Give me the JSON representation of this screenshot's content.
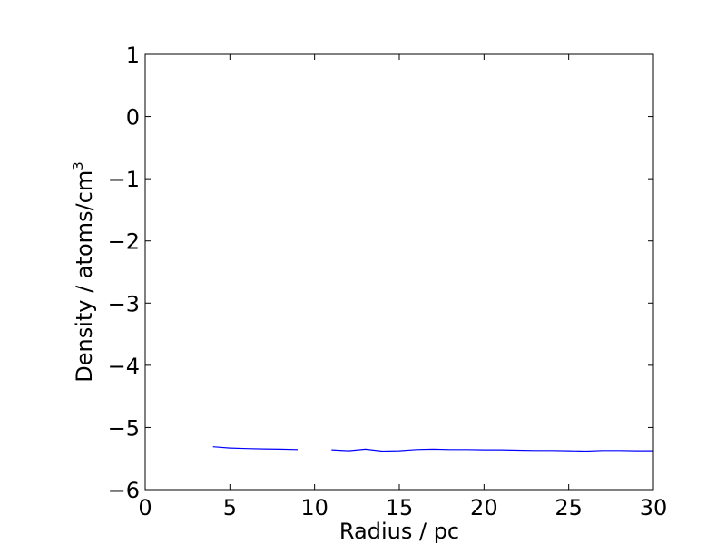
{
  "chart_data": {
    "type": "line",
    "title": "",
    "xlabel": "Radius / pc",
    "ylabel": "Density / atoms/cm",
    "ylabel_superscript": "3",
    "xlim": [
      0,
      30
    ],
    "ylim": [
      -6,
      1
    ],
    "x_ticks": [
      0,
      5,
      10,
      15,
      20,
      25,
      30
    ],
    "y_ticks": [
      1,
      0,
      -1,
      -2,
      -3,
      -4,
      -5,
      -6
    ],
    "x_tick_labels": [
      "0",
      "5",
      "10",
      "15",
      "20",
      "25",
      "30"
    ],
    "y_tick_labels": [
      "1",
      "0",
      "−1",
      "−2",
      "−3",
      "−4",
      "−5",
      "−6"
    ],
    "grid": false,
    "series": [
      {
        "color": "#0000ff",
        "segments": [
          {
            "x": [
              4,
              5,
              6,
              7,
              8,
              9
            ],
            "y": [
              -5.31,
              -5.33,
              -5.34,
              -5.345,
              -5.35,
              -5.355
            ]
          },
          {
            "x": [
              11,
              12,
              13,
              14,
              15,
              16,
              17,
              18,
              19,
              20,
              21,
              22,
              23,
              24,
              25,
              26,
              27,
              28,
              29,
              30
            ],
            "y": [
              -5.36,
              -5.375,
              -5.35,
              -5.38,
              -5.375,
              -5.355,
              -5.35,
              -5.355,
              -5.355,
              -5.36,
              -5.36,
              -5.365,
              -5.37,
              -5.37,
              -5.375,
              -5.38,
              -5.37,
              -5.37,
              -5.375,
              -5.375
            ]
          }
        ]
      }
    ]
  }
}
